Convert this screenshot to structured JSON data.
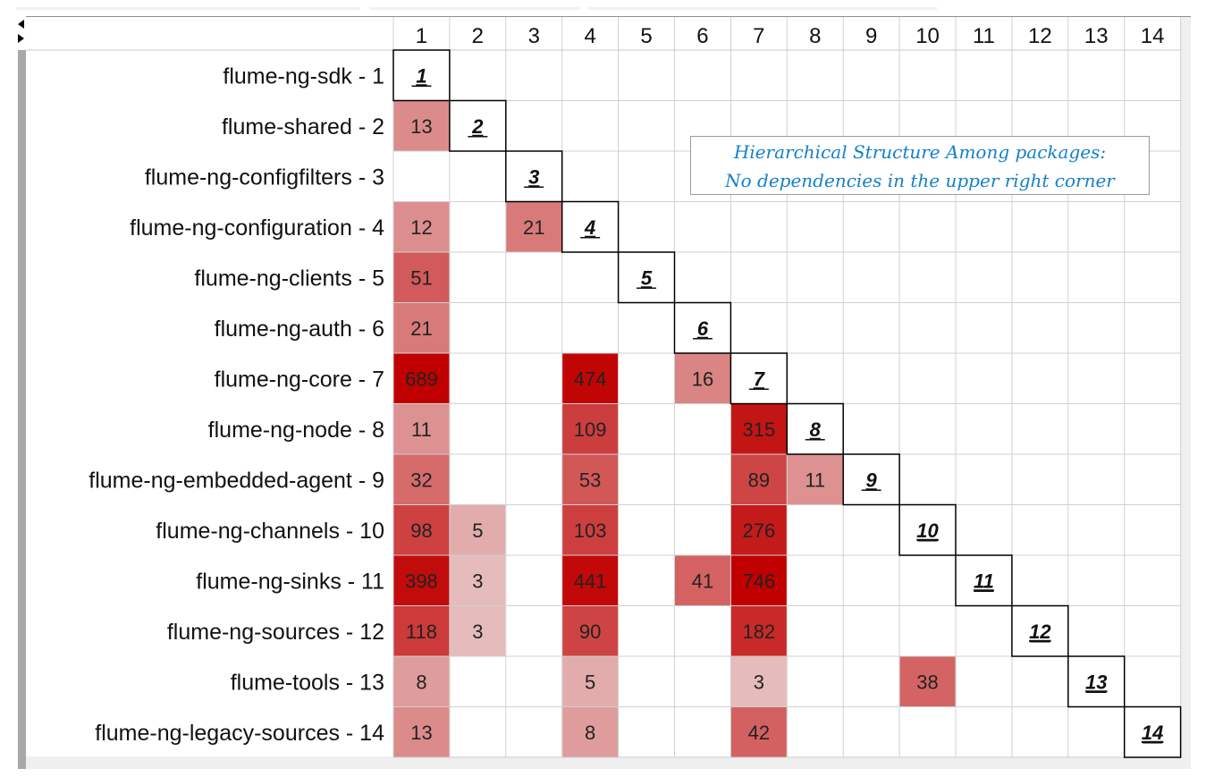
{
  "chart_data": {
    "type": "heatmap",
    "title": "",
    "annotation": [
      "Hierarchical Structure Among packages:",
      "No dependencies in the upper right corner"
    ],
    "columns": [
      "1",
      "2",
      "3",
      "4",
      "5",
      "6",
      "7",
      "8",
      "9",
      "10",
      "11",
      "12",
      "13",
      "14"
    ],
    "rows": [
      "flume-ng-sdk - 1",
      "flume-shared - 2",
      "flume-ng-configfilters - 3",
      "flume-ng-configuration - 4",
      "flume-ng-clients - 5",
      "flume-ng-auth - 6",
      "flume-ng-core - 7",
      "flume-ng-node - 8",
      "flume-ng-embedded-agent - 9",
      "flume-ng-channels - 10",
      "flume-ng-sinks - 11",
      "flume-ng-sources - 12",
      "flume-tools - 13",
      "flume-ng-legacy-sources - 14"
    ],
    "cells": [
      {
        "row": 2,
        "col": 1,
        "value": 13
      },
      {
        "row": 4,
        "col": 1,
        "value": 12
      },
      {
        "row": 4,
        "col": 3,
        "value": 21
      },
      {
        "row": 5,
        "col": 1,
        "value": 51
      },
      {
        "row": 6,
        "col": 1,
        "value": 21
      },
      {
        "row": 7,
        "col": 1,
        "value": 689
      },
      {
        "row": 7,
        "col": 4,
        "value": 474
      },
      {
        "row": 7,
        "col": 6,
        "value": 16
      },
      {
        "row": 8,
        "col": 1,
        "value": 11
      },
      {
        "row": 8,
        "col": 4,
        "value": 109
      },
      {
        "row": 8,
        "col": 7,
        "value": 315
      },
      {
        "row": 9,
        "col": 1,
        "value": 32
      },
      {
        "row": 9,
        "col": 4,
        "value": 53
      },
      {
        "row": 9,
        "col": 7,
        "value": 89
      },
      {
        "row": 9,
        "col": 8,
        "value": 11
      },
      {
        "row": 10,
        "col": 1,
        "value": 98
      },
      {
        "row": 10,
        "col": 2,
        "value": 5
      },
      {
        "row": 10,
        "col": 4,
        "value": 103
      },
      {
        "row": 10,
        "col": 7,
        "value": 276
      },
      {
        "row": 11,
        "col": 1,
        "value": 398
      },
      {
        "row": 11,
        "col": 2,
        "value": 3
      },
      {
        "row": 11,
        "col": 4,
        "value": 441
      },
      {
        "row": 11,
        "col": 6,
        "value": 41
      },
      {
        "row": 11,
        "col": 7,
        "value": 746
      },
      {
        "row": 12,
        "col": 1,
        "value": 118
      },
      {
        "row": 12,
        "col": 2,
        "value": 3
      },
      {
        "row": 12,
        "col": 4,
        "value": 90
      },
      {
        "row": 12,
        "col": 7,
        "value": 182
      },
      {
        "row": 13,
        "col": 1,
        "value": 8
      },
      {
        "row": 13,
        "col": 4,
        "value": 5
      },
      {
        "row": 13,
        "col": 7,
        "value": 3
      },
      {
        "row": 13,
        "col": 10,
        "value": 38
      },
      {
        "row": 14,
        "col": 1,
        "value": 13
      },
      {
        "row": 14,
        "col": 4,
        "value": 8
      },
      {
        "row": 14,
        "col": 7,
        "value": 42
      }
    ],
    "diagonal": [
      "1",
      "2",
      "3",
      "4",
      "5",
      "6",
      "7",
      "8",
      "9",
      "10",
      "11",
      "12",
      "13",
      "14"
    ],
    "color_scale": {
      "low": "#f0f0f0",
      "high": "#c00000"
    },
    "grid": true
  }
}
